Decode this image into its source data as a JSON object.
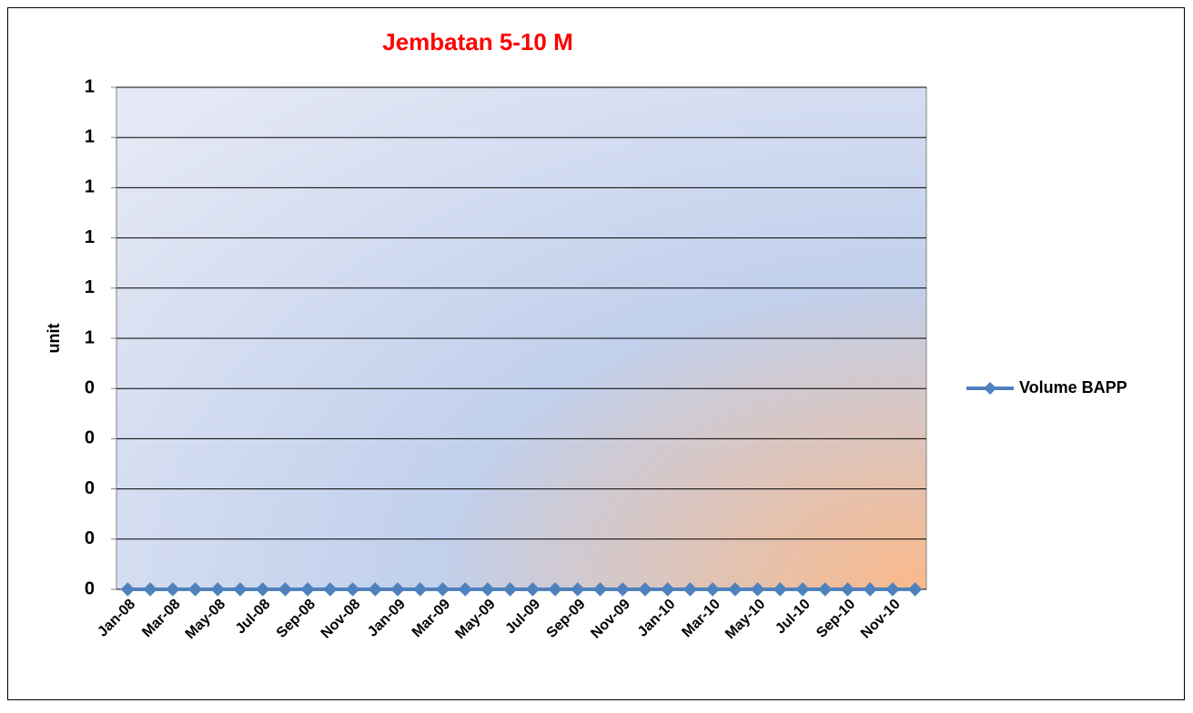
{
  "chart_data": {
    "type": "line",
    "title": "Jembatan 5-10 M",
    "ylabel": "unit",
    "categories": [
      "Jan-08",
      null,
      "Mar-08",
      null,
      "May-08",
      null,
      "Jul-08",
      null,
      "Sep-08",
      null,
      "Nov-08",
      null,
      "Jan-09",
      null,
      "Mar-09",
      null,
      "May-09",
      null,
      "Jul-09",
      null,
      "Sep-09",
      null,
      "Nov-09",
      null,
      "Jan-10",
      null,
      "Mar-10",
      null,
      "May-10",
      null,
      "Jul-10",
      null,
      "Sep-10",
      null,
      "Nov-10",
      null
    ],
    "series": [
      {
        "name": "Volume BAPP",
        "color": "#4f81bd",
        "values": [
          0,
          0,
          0,
          0,
          0,
          0,
          0,
          0,
          0,
          0,
          0,
          0,
          0,
          0,
          0,
          0,
          0,
          0,
          0,
          0,
          0,
          0,
          0,
          0,
          0,
          0,
          0,
          0,
          0,
          0,
          0,
          0,
          0,
          0,
          0,
          0
        ]
      }
    ],
    "ylim": [
      0,
      1
    ],
    "yticks": [
      0,
      {
        "value": 0.1,
        "label": "0"
      },
      {
        "value": 0.2,
        "label": "0"
      },
      {
        "value": 0.3,
        "label": "0"
      },
      {
        "value": 0.4,
        "label": "0"
      },
      {
        "value": 0.5,
        "label": "1"
      },
      {
        "value": 0.6,
        "label": "1"
      },
      {
        "value": 0.7,
        "label": "1"
      },
      {
        "value": 0.8,
        "label": "1"
      },
      {
        "value": 0.9,
        "label": "1"
      },
      1
    ],
    "grid": true,
    "legend": "right"
  }
}
